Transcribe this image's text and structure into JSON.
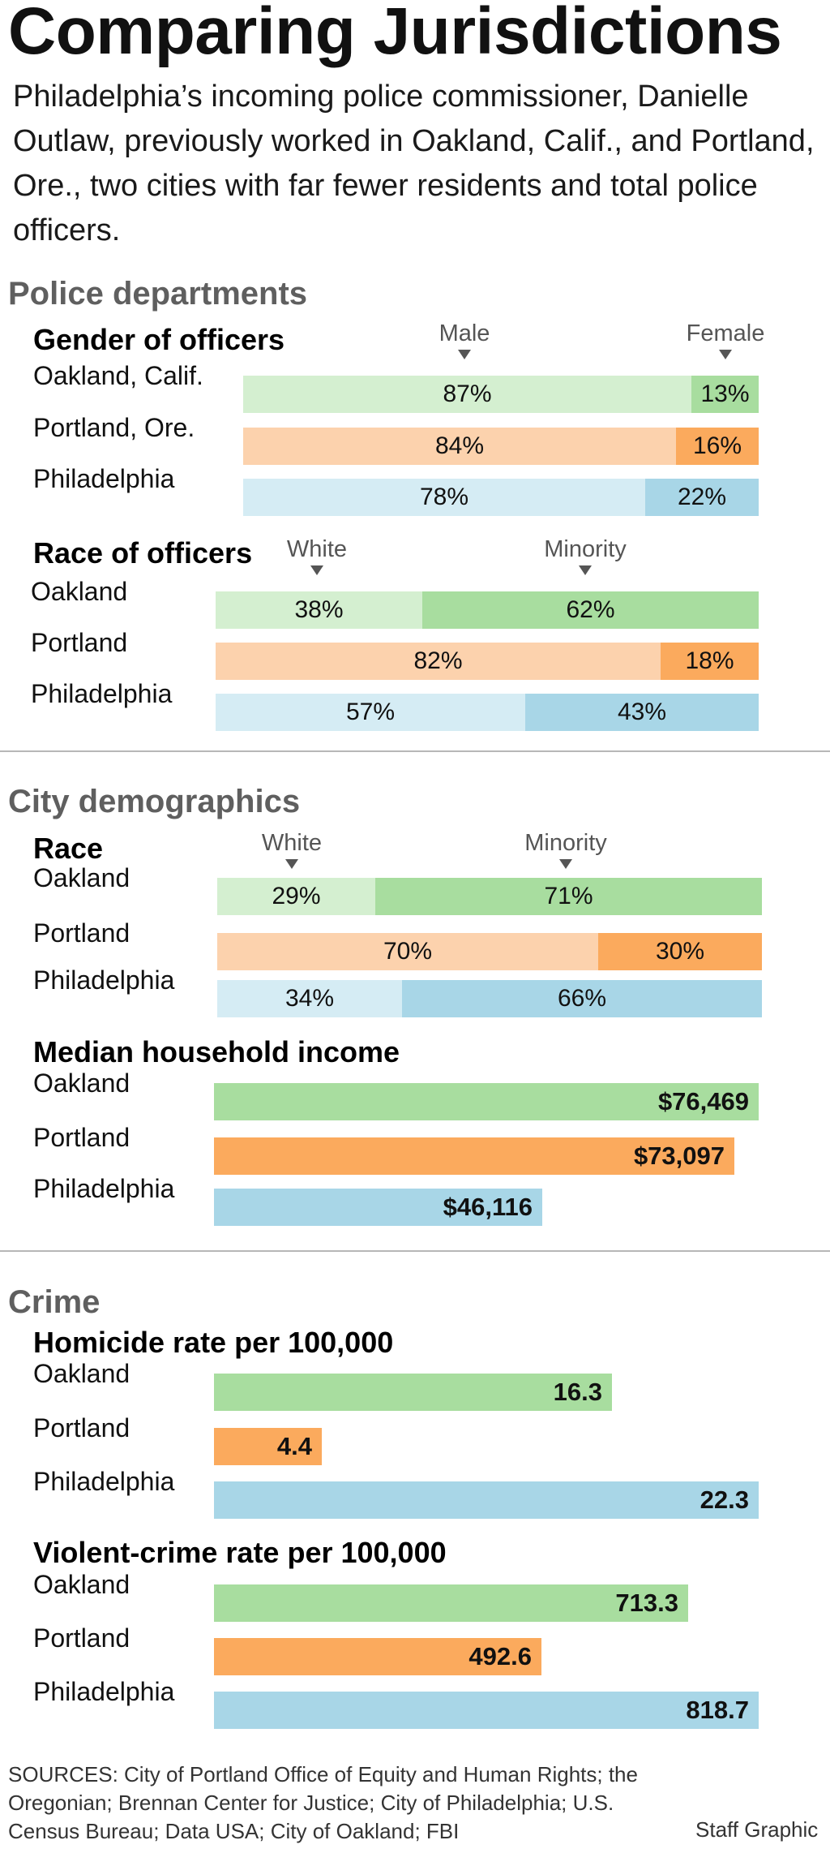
{
  "title": "Comparing Jurisdictions",
  "subtitle": "Philadelphia’s incoming police commissioner, Danielle Outlaw, previously worked in Oakland, Calif., and Portland, Ore., two cities with far fewer residents and total police officers.",
  "colors": {
    "oakland_dark": "#a8dd9f",
    "oakland_light": "#d4efd0",
    "portland_dark": "#fbaa5d",
    "portland_light": "#fcd2ad",
    "philadelphia_dark": "#a8d6e7",
    "philadelphia_light": "#d5ecf4"
  },
  "sections": [
    {
      "title": "Police departments"
    },
    {
      "title": "City demographics"
    },
    {
      "title": "Crime"
    }
  ],
  "chart_data": [
    {
      "type": "bar",
      "stacked": true,
      "title": "Gender of officers",
      "categories": [
        "Oakland, Calif.",
        "Portland, Ore.",
        "Philadelphia"
      ],
      "series": [
        {
          "name": "Male",
          "values": [
            87,
            84,
            78
          ],
          "labels": [
            "87%",
            "84%",
            "78%"
          ]
        },
        {
          "name": "Female",
          "values": [
            13,
            16,
            22
          ],
          "labels": [
            "13%",
            "16%",
            "22%"
          ]
        }
      ],
      "unit": "%"
    },
    {
      "type": "bar",
      "stacked": true,
      "title": "Race of officers",
      "categories": [
        "Oakland",
        "Portland",
        "Philadelphia"
      ],
      "series": [
        {
          "name": "White",
          "values": [
            38,
            82,
            57
          ],
          "labels": [
            "38%",
            "82%",
            "57%"
          ]
        },
        {
          "name": "Minority",
          "values": [
            62,
            18,
            43
          ],
          "labels": [
            "62%",
            "18%",
            "43%"
          ]
        }
      ],
      "unit": "%"
    },
    {
      "type": "bar",
      "stacked": true,
      "title": "Race",
      "categories": [
        "Oakland",
        "Portland",
        "Philadelphia"
      ],
      "series": [
        {
          "name": "White",
          "values": [
            29,
            70,
            34
          ],
          "labels": [
            "29%",
            "70%",
            "34%"
          ]
        },
        {
          "name": "Minority",
          "values": [
            71,
            30,
            66
          ],
          "labels": [
            "71%",
            "30%",
            "66%"
          ]
        }
      ],
      "unit": "%"
    },
    {
      "type": "bar",
      "title": "Median household income",
      "categories": [
        "Oakland",
        "Portland",
        "Philadelphia"
      ],
      "values": [
        76469,
        73097,
        46116
      ],
      "labels": [
        "$76,469",
        "$73,097",
        "$46,116"
      ]
    },
    {
      "type": "bar",
      "title": "Homicide rate per 100,000",
      "categories": [
        "Oakland",
        "Portland",
        "Philadelphia"
      ],
      "values": [
        16.3,
        4.4,
        22.3
      ],
      "labels": [
        "16.3",
        "4.4",
        "22.3"
      ]
    },
    {
      "type": "bar",
      "title": "Violent-crime rate per 100,000",
      "categories": [
        "Oakland",
        "Portland",
        "Philadelphia"
      ],
      "values": [
        713.3,
        492.6,
        818.7
      ],
      "labels": [
        "713.3",
        "492.6",
        "818.7"
      ]
    }
  ],
  "source": "SOURCES: City of Portland Office of Equity and Human Rights; the Oregonian; Brennan Center for Justice; City of Philadelphia; U.S. Census Bureau; Data USA; City of Oakland; FBI",
  "credit": "Staff Graphic"
}
